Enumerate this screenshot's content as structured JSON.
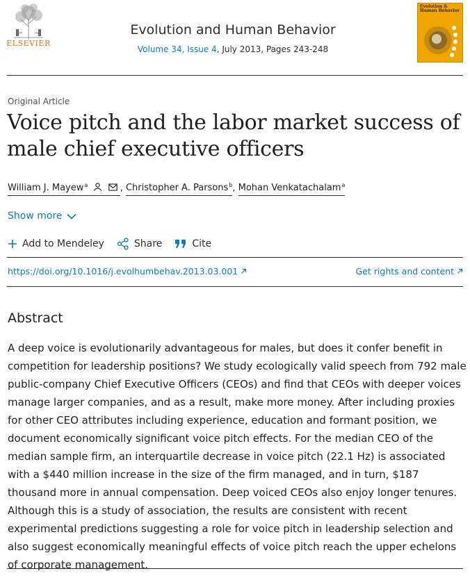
{
  "publisher": {
    "name": "ELSEVIER"
  },
  "journal": {
    "title": "Evolution and Human Behavior",
    "volume_issue": "Volume 34, Issue 4",
    "date_pages": ", July 2013, Pages 243-248",
    "cover_title": "Evolution & Human Behavior"
  },
  "article": {
    "type": "Original Article",
    "title": "Voice pitch and the labor market success of male chief executive officers",
    "authors": [
      {
        "name": "William J. Mayew",
        "sup": "a"
      },
      {
        "name": "Christopher A. Parsons",
        "sup": "b"
      },
      {
        "name": "Mohan Venkatachalam",
        "sup": "a"
      }
    ],
    "show_more": "Show more",
    "doi": "https://doi.org/10.1016/j.evolhumbehav.2013.03.001",
    "rights": "Get rights and content"
  },
  "actions": {
    "mendeley": "Add to Mendeley",
    "share": "Share",
    "cite": "Cite"
  },
  "abstract": {
    "heading": "Abstract",
    "body": "A deep voice is evolutionarily advantageous for males, but does it confer benefit in competition for leadership positions? We study ecologically valid speech from 792 male public-company Chief Executive Officers (CEOs) and find that CEOs with deeper voices manage larger companies, and as a result, make more money. After including proxies for other CEO attributes including experience, education and formant position, we document economically significant voice pitch effects. For the median CEO of the median sample firm, an interquartile decrease in voice pitch (22.1 Hz) is associated with a $440 million increase in the size of the firm managed, and in turn, $187 thousand more in annual compensation. Deep voiced CEOs also enjoy longer tenures. Although this is a study of association, the results are consistent with recent experimental predictions suggesting a role for voice pitch in leadership selection and also suggest economically meaningful effects of voice pitch reach the upper echelons of corporate management."
  },
  "icons": {
    "external_link": "arrow-up-right-icon",
    "person": "person-icon",
    "mail": "mail-icon",
    "plus": "plus-icon",
    "share": "share-icon",
    "quote": "quote-icon",
    "chevron": "chevron-down-icon"
  },
  "colors": {
    "link": "#0c7dbb",
    "publisher_orange": "#e9711c",
    "cover": "#f0a500"
  }
}
